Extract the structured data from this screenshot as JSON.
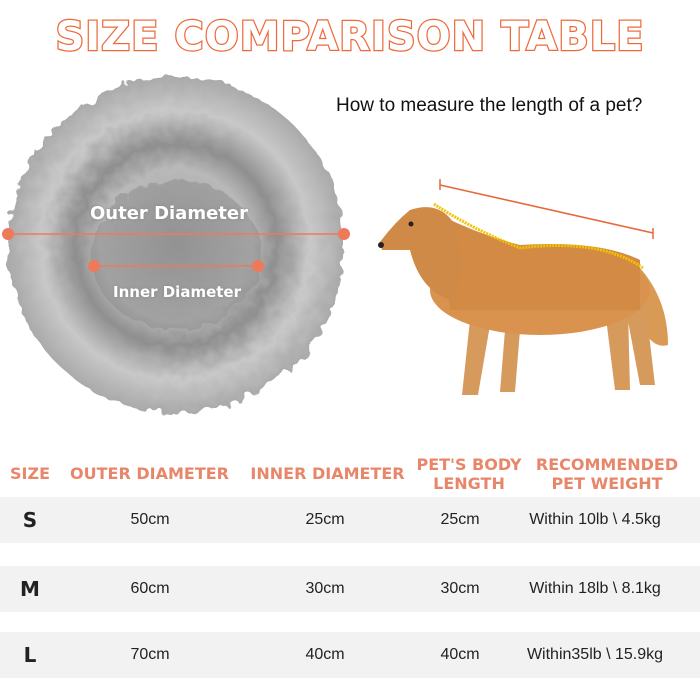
{
  "title": "SIZE COMPARISON TABLE",
  "question": "How to measure the length of a pet?",
  "bed": {
    "outer_label": "Outer Diameter",
    "inner_label": "Inner Diameter"
  },
  "colors": {
    "accent": "#ee6a3c",
    "header": "#e8866a",
    "row_bg": "#f2f2f2",
    "tape": "#f2c200"
  },
  "table": {
    "headers": [
      "SIZE",
      "OUTER DIAMETER",
      "INNER DIAMETER",
      "PET'S BODY\nLENGTH",
      "RECOMMENDED\nPET WEIGHT"
    ],
    "rows": [
      [
        "S",
        "50cm",
        "25cm",
        "25cm",
        "Within 10lb \\ 4.5kg"
      ],
      [
        "M",
        "60cm",
        "30cm",
        "30cm",
        "Within 18lb \\ 8.1kg"
      ],
      [
        "L",
        "70cm",
        "40cm",
        "40cm",
        "Within35lb \\ 15.9kg"
      ]
    ]
  }
}
